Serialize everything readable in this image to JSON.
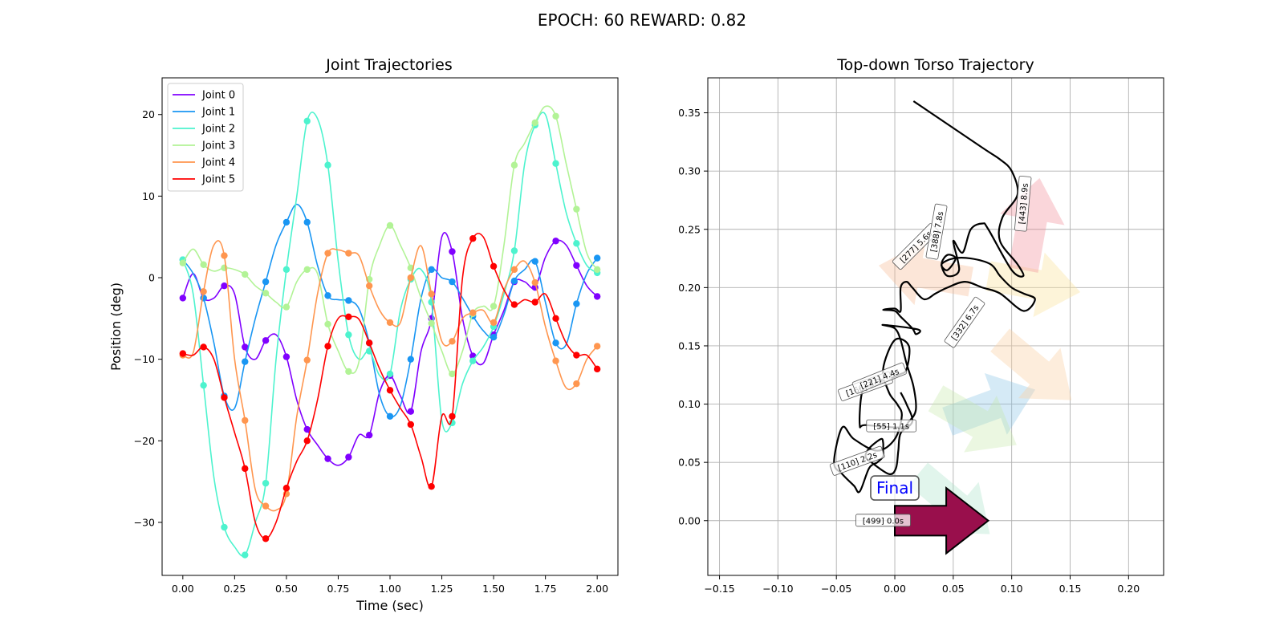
{
  "figure": {
    "suptitle": "EPOCH:  60 REWARD:   0.82"
  },
  "chart_data": [
    {
      "type": "line",
      "title": "Joint Trajectories",
      "xlabel": "Time (sec)",
      "ylabel": "Position (deg)",
      "xlim": [
        -0.1,
        2.1
      ],
      "ylim": [
        -36.5,
        24.5
      ],
      "xticks": [
        "0.00",
        "0.25",
        "0.50",
        "0.75",
        "1.00",
        "1.25",
        "1.50",
        "1.75",
        "2.00"
      ],
      "xtick_values": [
        0,
        0.25,
        0.5,
        0.75,
        1.0,
        1.25,
        1.5,
        1.75,
        2.0
      ],
      "yticks": [
        "−30",
        "−20",
        "−10",
        "0",
        "10",
        "20"
      ],
      "ytick_values": [
        -30,
        -20,
        -10,
        0,
        10,
        20
      ],
      "grid": false,
      "legend_position": "top-left",
      "marker_times": [
        0.0,
        0.1,
        0.2,
        0.3,
        0.4,
        0.5,
        0.6,
        0.7,
        0.8,
        0.9,
        1.0,
        1.1,
        1.2,
        1.3,
        1.4,
        1.5,
        1.6,
        1.7,
        1.8,
        1.9,
        2.0
      ],
      "series": [
        {
          "name": "Joint 0",
          "color": "#8000ff",
          "x": [
            0.0,
            0.05,
            0.1,
            0.15,
            0.2,
            0.25,
            0.3,
            0.35,
            0.4,
            0.45,
            0.5,
            0.55,
            0.6,
            0.65,
            0.7,
            0.75,
            0.8,
            0.85,
            0.9,
            0.95,
            1.0,
            1.05,
            1.1,
            1.15,
            1.2,
            1.25,
            1.3,
            1.35,
            1.4,
            1.45,
            1.5,
            1.55,
            1.6,
            1.65,
            1.7,
            1.75,
            1.8,
            1.85,
            1.9,
            1.95,
            2.0
          ],
          "y": [
            -2.5,
            0.5,
            -2.5,
            -2.5,
            -1.0,
            -2.0,
            -8.5,
            -10.0,
            -7.7,
            -7.0,
            -9.7,
            -15.0,
            -18.6,
            -20.5,
            -22.2,
            -23.0,
            -22.0,
            -19.3,
            -19.3,
            -14.0,
            -12.0,
            -14.5,
            -16.4,
            -9.0,
            -5.0,
            5.0,
            3.2,
            -5.0,
            -9.6,
            -10.5,
            -7.0,
            -4.0,
            -0.5,
            -0.5,
            -1.2,
            2.5,
            4.5,
            4.0,
            1.5,
            -1.0,
            -2.3
          ]
        },
        {
          "name": "Joint 1",
          "color": "#1996f3",
          "x": [
            0.0,
            0.05,
            0.1,
            0.15,
            0.2,
            0.25,
            0.3,
            0.35,
            0.4,
            0.45,
            0.5,
            0.55,
            0.6,
            0.65,
            0.7,
            0.75,
            0.8,
            0.85,
            0.9,
            0.95,
            1.0,
            1.05,
            1.1,
            1.15,
            1.2,
            1.25,
            1.3,
            1.35,
            1.4,
            1.45,
            1.5,
            1.55,
            1.6,
            1.65,
            1.7,
            1.75,
            1.8,
            1.85,
            1.9,
            1.95,
            2.0
          ],
          "y": [
            2.2,
            0.5,
            -2.5,
            -8.0,
            -14.5,
            -16.0,
            -10.3,
            -5.0,
            -0.5,
            4.0,
            6.8,
            9.0,
            6.8,
            1.5,
            -2.2,
            -2.7,
            -2.8,
            -3.8,
            -8.0,
            -14.4,
            -17.0,
            -15.7,
            -10.0,
            -2.5,
            1.0,
            0.0,
            -0.5,
            -2.5,
            -4.7,
            -6.5,
            -7.3,
            -4.5,
            -0.4,
            1.0,
            2.0,
            -3.0,
            -8.0,
            -8.2,
            -3.2,
            0.5,
            2.4
          ]
        },
        {
          "name": "Joint 2",
          "color": "#4df3ce",
          "x": [
            0.0,
            0.05,
            0.1,
            0.15,
            0.2,
            0.25,
            0.3,
            0.35,
            0.4,
            0.45,
            0.5,
            0.55,
            0.6,
            0.65,
            0.7,
            0.75,
            0.8,
            0.85,
            0.9,
            0.95,
            1.0,
            1.05,
            1.1,
            1.15,
            1.2,
            1.25,
            1.3,
            1.35,
            1.4,
            1.45,
            1.5,
            1.55,
            1.6,
            1.65,
            1.7,
            1.75,
            1.8,
            1.85,
            1.9,
            1.95,
            2.0
          ],
          "y": [
            2.2,
            -2.0,
            -13.2,
            -24.5,
            -30.6,
            -33.0,
            -34.0,
            -30.0,
            -25.2,
            -10.0,
            1.0,
            10.0,
            19.2,
            19.5,
            13.8,
            2.0,
            -7.0,
            -10.0,
            -9.0,
            -12.0,
            -11.8,
            -4.0,
            -0.2,
            1.0,
            -3.0,
            -17.5,
            -17.8,
            -13.0,
            -10.2,
            -8.5,
            -6.0,
            -2.0,
            3.3,
            14.0,
            18.7,
            20.0,
            14.0,
            8.0,
            4.2,
            1.5,
            0.6
          ]
        },
        {
          "name": "Joint 3",
          "color": "#b2f396",
          "x": [
            0.0,
            0.05,
            0.1,
            0.15,
            0.2,
            0.25,
            0.3,
            0.35,
            0.4,
            0.45,
            0.5,
            0.55,
            0.6,
            0.65,
            0.7,
            0.75,
            0.8,
            0.85,
            0.9,
            0.95,
            1.0,
            1.05,
            1.1,
            1.15,
            1.2,
            1.25,
            1.3,
            1.35,
            1.4,
            1.45,
            1.5,
            1.55,
            1.6,
            1.65,
            1.7,
            1.75,
            1.8,
            1.85,
            1.9,
            1.95,
            2.0
          ],
          "y": [
            1.8,
            3.5,
            1.6,
            0.8,
            1.2,
            1.0,
            0.4,
            -1.0,
            -1.9,
            -3.0,
            -3.6,
            -0.5,
            1.0,
            0.5,
            -5.7,
            -9.0,
            -11.5,
            -10.3,
            -0.2,
            4.0,
            6.4,
            4.0,
            1.2,
            -2.5,
            -5.6,
            -9.0,
            -11.8,
            -9.0,
            -4.4,
            -3.5,
            -3.5,
            4.0,
            13.8,
            16.5,
            19.0,
            21.0,
            19.8,
            14.0,
            8.4,
            3.0,
            1.0
          ]
        },
        {
          "name": "Joint 4",
          "color": "#ff964f",
          "x": [
            0.0,
            0.05,
            0.1,
            0.15,
            0.2,
            0.25,
            0.3,
            0.35,
            0.4,
            0.45,
            0.5,
            0.55,
            0.6,
            0.65,
            0.7,
            0.75,
            0.8,
            0.85,
            0.9,
            0.95,
            1.0,
            1.05,
            1.1,
            1.15,
            1.2,
            1.25,
            1.3,
            1.35,
            1.4,
            1.45,
            1.5,
            1.55,
            1.6,
            1.65,
            1.7,
            1.75,
            1.8,
            1.85,
            1.9,
            1.95,
            2.0
          ],
          "y": [
            -9.5,
            -9.2,
            -1.7,
            4.0,
            2.7,
            -10.0,
            -17.5,
            -26.0,
            -28.0,
            -28.5,
            -26.5,
            -17.0,
            -10.1,
            -2.0,
            3.0,
            3.4,
            3.0,
            2.7,
            -1.0,
            -4.0,
            -5.5,
            -5.5,
            0.0,
            3.9,
            -2.0,
            -7.8,
            -7.8,
            -5.0,
            -4.3,
            -4.0,
            -5.5,
            -1.5,
            1.0,
            2.0,
            -0.6,
            -6.0,
            -10.2,
            -13.5,
            -13.0,
            -10.0,
            -8.4
          ]
        },
        {
          "name": "Joint 5",
          "color": "#ff0000",
          "x": [
            0.0,
            0.05,
            0.1,
            0.15,
            0.2,
            0.25,
            0.3,
            0.35,
            0.4,
            0.45,
            0.5,
            0.55,
            0.6,
            0.65,
            0.7,
            0.75,
            0.8,
            0.85,
            0.9,
            0.95,
            1.0,
            1.05,
            1.1,
            1.15,
            1.2,
            1.25,
            1.3,
            1.35,
            1.4,
            1.45,
            1.5,
            1.55,
            1.6,
            1.65,
            1.7,
            1.75,
            1.8,
            1.85,
            1.9,
            1.95,
            2.0
          ],
          "y": [
            -9.3,
            -9.5,
            -8.5,
            -10.0,
            -14.7,
            -19.0,
            -23.4,
            -30.0,
            -32.0,
            -30.0,
            -25.8,
            -22.5,
            -20.0,
            -15.0,
            -8.4,
            -5.0,
            -4.8,
            -5.1,
            -8.0,
            -11.2,
            -13.8,
            -16.0,
            -18.0,
            -22.0,
            -25.6,
            -17.0,
            -17.0,
            0.0,
            4.8,
            5.0,
            1.4,
            -1.5,
            -3.3,
            -2.7,
            -3.0,
            -2.0,
            -5.0,
            -8.0,
            -9.5,
            -9.5,
            -11.2
          ]
        }
      ]
    },
    {
      "type": "line",
      "title": "Top-down Torso Trajectory",
      "xlim": [
        -0.16,
        0.23
      ],
      "ylim": [
        -0.047,
        0.38
      ],
      "xticks": [
        "−0.15",
        "−0.10",
        "−0.05",
        "0.00",
        "0.05",
        "0.10",
        "0.15",
        "0.20"
      ],
      "xtick_values": [
        -0.15,
        -0.1,
        -0.05,
        0.0,
        0.05,
        0.1,
        0.15,
        0.2
      ],
      "yticks": [
        "0.00",
        "0.05",
        "0.10",
        "0.15",
        "0.20",
        "0.25",
        "0.30",
        "0.35"
      ],
      "ytick_values": [
        0.0,
        0.05,
        0.1,
        0.15,
        0.2,
        0.25,
        0.3,
        0.35
      ],
      "grid": true,
      "path": {
        "color": "#000000",
        "x": [
          0.016,
          0.075,
          0.09,
          0.1,
          0.105,
          0.092,
          0.09,
          0.105,
          0.11,
          0.1,
          0.08,
          0.075,
          0.065,
          0.058,
          0.05,
          0.055,
          0.045,
          0.04,
          0.045,
          0.052,
          0.045,
          0.04,
          0.05,
          0.065,
          0.082,
          0.09,
          0.1,
          0.11,
          0.12,
          0.11,
          0.09,
          0.075,
          0.06,
          0.045,
          0.035,
          0.025,
          0.015,
          0.01,
          0.005,
          0.005,
          0.0,
          -0.01,
          0.0,
          0.005,
          0.015,
          0.018,
          0.02,
          -0.01,
          0.0,
          0.005,
          0.01,
          0.016,
          0.018,
          0.012,
          0.005,
          -0.025,
          -0.03,
          -0.028,
          -0.02,
          -0.02,
          -0.02,
          0.003,
          0.01,
          0.012,
          0.0,
          -0.01,
          -0.005,
          0.002,
          0.006,
          0.0,
          -0.015,
          -0.035,
          -0.045,
          -0.052,
          -0.045,
          -0.035,
          -0.03,
          -0.022,
          -0.015,
          -0.01,
          -0.01,
          -0.01,
          -0.012,
          -0.022,
          -0.025,
          -0.02,
          -0.005,
          0.001,
          0.003,
          0.005,
          0.015,
          0.01,
          0.005
        ],
        "y": [
          0.36,
          0.32,
          0.31,
          0.3,
          0.28,
          0.26,
          0.24,
          0.22,
          0.21,
          0.215,
          0.25,
          0.255,
          0.25,
          0.23,
          0.24,
          0.215,
          0.21,
          0.22,
          0.228,
          0.225,
          0.215,
          0.22,
          0.225,
          0.225,
          0.22,
          0.21,
          0.2,
          0.195,
          0.19,
          0.18,
          0.195,
          0.2,
          0.205,
          0.2,
          0.195,
          0.19,
          0.2,
          0.205,
          0.2,
          0.18,
          0.182,
          0.181,
          0.18,
          0.175,
          0.165,
          0.16,
          0.164,
          0.168,
          0.165,
          0.155,
          0.135,
          0.115,
          0.095,
          0.085,
          0.08,
          0.082,
          0.082,
          0.11,
          0.116,
          0.12,
          0.115,
          0.125,
          0.13,
          0.15,
          0.155,
          0.13,
          0.11,
          0.1,
          0.09,
          0.07,
          0.06,
          0.07,
          0.08,
          0.05,
          0.04,
          0.03,
          0.025,
          0.045,
          0.05,
          0.055,
          0.06,
          0.067,
          0.07,
          0.062,
          0.055,
          0.05,
          0.04,
          0.045,
          0.06,
          0.075,
          0.085,
          0.1,
          0.11
        ]
      },
      "heading_arrows": [
        {
          "x": 0.02,
          "y": 0.04,
          "angle_deg": -40,
          "color": "#a8e1c8",
          "alpha": 0.35
        },
        {
          "x": 0.045,
          "y": 0.085,
          "angle_deg": 20,
          "color": "#88c2e6",
          "alpha": 0.35
        },
        {
          "x": 0.035,
          "y": 0.105,
          "angle_deg": -30,
          "color": "#c5e8a8",
          "alpha": 0.35
        },
        {
          "x": 0.08,
          "y": 0.21,
          "angle_deg": -10,
          "color": "#f9e3a0",
          "alpha": 0.4
        },
        {
          "x": 0.065,
          "y": 0.205,
          "angle_deg": 170,
          "color": "#f7b88e",
          "alpha": 0.35
        },
        {
          "x": 0.09,
          "y": 0.155,
          "angle_deg": -40,
          "color": "#f9d2a8",
          "alpha": 0.4
        },
        {
          "x": 0.11,
          "y": 0.215,
          "angle_deg": 80,
          "color": "#f28a94",
          "alpha": 0.35
        }
      ],
      "final_arrow": {
        "x": 0.0,
        "y": 0.0,
        "angle_deg": 0,
        "color": "#990f4c"
      },
      "annotations": [
        {
          "text": "[55] 1.1s",
          "x": -0.003,
          "y": 0.081,
          "rotation": 0
        },
        {
          "text": "[110] 2.2s",
          "x": -0.032,
          "y": 0.051,
          "rotation": 20
        },
        {
          "text": "[166] 3.3s",
          "x": -0.025,
          "y": 0.115,
          "rotation": 20
        },
        {
          "text": "[221] 4.4s",
          "x": -0.013,
          "y": 0.122,
          "rotation": 22
        },
        {
          "text": "[277] 5.6s",
          "x": 0.018,
          "y": 0.235,
          "rotation": 45
        },
        {
          "text": "[332] 6.7s",
          "x": 0.06,
          "y": 0.17,
          "rotation": 55
        },
        {
          "text": "[388] 7.8s",
          "x": 0.036,
          "y": 0.248,
          "rotation": 80
        },
        {
          "text": "[443] 8.9s",
          "x": 0.11,
          "y": 0.272,
          "rotation": 85
        },
        {
          "text": "[499] 0.0s",
          "x": -0.01,
          "y": 0.0,
          "rotation": 0
        }
      ],
      "final_label": {
        "text": "Final",
        "x": 0.0,
        "y": 0.028,
        "color": "#0000ff"
      }
    }
  ]
}
